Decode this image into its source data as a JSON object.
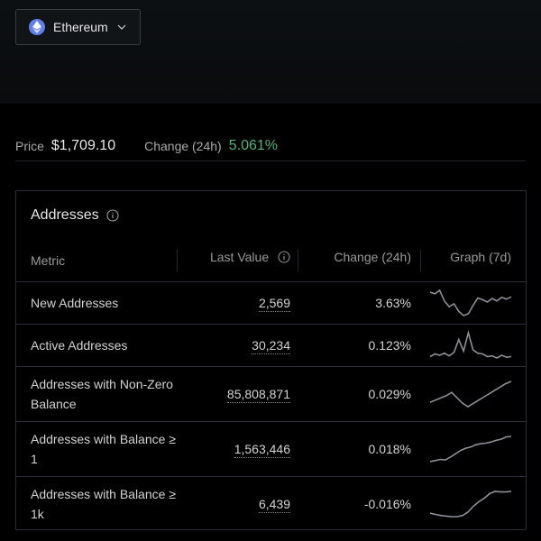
{
  "asset_selector": {
    "label": "Ethereum",
    "icon": "ethereum-icon"
  },
  "price_bar": {
    "price_label": "Price",
    "price_value": "$1,709.10",
    "change_label": "Change (24h)",
    "change_value": "5.061%"
  },
  "panel": {
    "title": "Addresses",
    "columns": {
      "metric": "Metric",
      "last_value": "Last Value",
      "change": "Change (24h)",
      "graph": "Graph (7d)"
    },
    "rows": [
      {
        "metric": "New Addresses",
        "last_value": "2,569",
        "change": "3.63%",
        "trend": "positive",
        "graph": [
          55,
          52,
          58,
          40,
          30,
          35,
          22,
          15,
          18,
          32,
          45,
          42,
          38,
          44,
          40,
          46,
          43,
          47
        ]
      },
      {
        "metric": "Active Addresses",
        "last_value": "30,234",
        "change": "0.123%",
        "trend": "positive",
        "graph": [
          20,
          24,
          22,
          25,
          21,
          26,
          45,
          28,
          55,
          30,
          25,
          24,
          20,
          21,
          18,
          22,
          19,
          20
        ]
      },
      {
        "metric": "Addresses with Non-Zero Balance",
        "last_value": "85,808,871",
        "change": "0.029%",
        "trend": "positive",
        "graph": [
          20,
          24,
          28,
          32,
          38,
          28,
          18,
          12,
          18,
          24,
          30,
          36,
          42,
          48,
          54,
          58
        ]
      },
      {
        "metric": "Addresses with Balance ≥ 1",
        "last_value": "1,563,446",
        "change": "0.018%",
        "trend": "positive",
        "graph": [
          12,
          14,
          16,
          15,
          20,
          26,
          32,
          36,
          38,
          42,
          44,
          45,
          47,
          50,
          52,
          56,
          57
        ]
      },
      {
        "metric": "Addresses with Balance ≥ 1k",
        "last_value": "6,439",
        "change": "-0.016%",
        "trend": "negative",
        "graph": [
          18,
          16,
          14,
          13,
          12,
          12,
          14,
          20,
          30,
          38,
          44,
          52,
          56,
          55,
          55,
          56
        ]
      }
    ]
  },
  "colors": {
    "positive": "#4fb57a",
    "negative": "#e0646a",
    "sparkline": "#8c8f94",
    "eth_brand": "#627eea"
  }
}
